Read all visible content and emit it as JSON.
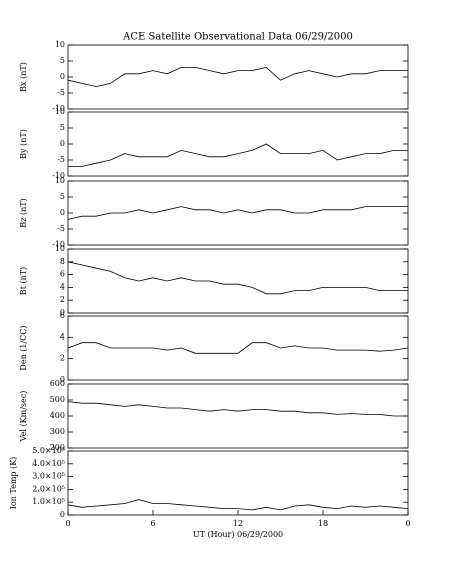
{
  "chart_data": [
    {
      "type": "line",
      "title": "ACE Satellite Observational Data   06/29/2000",
      "ylabel": "Bx (nT)",
      "x": [
        0,
        1,
        2,
        3,
        4,
        5,
        6,
        7,
        8,
        9,
        10,
        11,
        12,
        13,
        14,
        15,
        16,
        17,
        18,
        19,
        20,
        21,
        22,
        23,
        24
      ],
      "series": [
        {
          "name": "Bx",
          "color": "#000000",
          "values": [
            -1,
            -2,
            -3,
            -2,
            1,
            1,
            2,
            1,
            3,
            3,
            2,
            1,
            2,
            2,
            3,
            -1,
            1,
            2,
            1,
            0,
            1,
            1,
            2,
            2,
            2
          ]
        }
      ],
      "xlim": [
        0,
        24
      ],
      "ylim": [
        -10,
        10
      ],
      "yticks": [
        -10,
        -5,
        0,
        5,
        10
      ]
    },
    {
      "type": "line",
      "ylabel": "By (nT)",
      "x": [
        0,
        1,
        2,
        3,
        4,
        5,
        6,
        7,
        8,
        9,
        10,
        11,
        12,
        13,
        14,
        15,
        16,
        17,
        18,
        19,
        20,
        21,
        22,
        23,
        24
      ],
      "series": [
        {
          "name": "By",
          "color": "#000000",
          "values": [
            -7,
            -7,
            -6,
            -5,
            -3,
            -4,
            -4,
            -4,
            -2,
            -3,
            -4,
            -4,
            -3,
            -2,
            0,
            -3,
            -3,
            -3,
            -2,
            -5,
            -4,
            -3,
            -3,
            -2,
            -2
          ]
        }
      ],
      "xlim": [
        0,
        24
      ],
      "ylim": [
        -10,
        10
      ],
      "yticks": [
        -10,
        -5,
        0,
        5,
        10
      ]
    },
    {
      "type": "line",
      "ylabel": "Bz (nT)",
      "x": [
        0,
        1,
        2,
        3,
        4,
        5,
        6,
        7,
        8,
        9,
        10,
        11,
        12,
        13,
        14,
        15,
        16,
        17,
        18,
        19,
        20,
        21,
        22,
        23,
        24
      ],
      "series": [
        {
          "name": "Bz",
          "color": "#000000",
          "values": [
            -2,
            -1,
            -1,
            0,
            0,
            1,
            0,
            1,
            2,
            1,
            1,
            0,
            1,
            0,
            1,
            1,
            0,
            0,
            1,
            1,
            1,
            2,
            2,
            2,
            2
          ]
        }
      ],
      "xlim": [
        0,
        24
      ],
      "ylim": [
        -10,
        10
      ],
      "yticks": [
        -10,
        -5,
        0,
        5,
        10
      ]
    },
    {
      "type": "line",
      "ylabel": "Bt (nT)",
      "x": [
        0,
        1,
        2,
        3,
        4,
        5,
        6,
        7,
        8,
        9,
        10,
        11,
        12,
        13,
        14,
        15,
        16,
        17,
        18,
        19,
        20,
        21,
        22,
        23,
        24
      ],
      "series": [
        {
          "name": "Bt",
          "color": "#000000",
          "values": [
            8,
            7.5,
            7,
            6.5,
            5.5,
            5,
            5.5,
            5,
            5.5,
            5,
            5,
            4.5,
            4.5,
            4,
            3,
            3,
            3.5,
            3.5,
            4,
            4,
            4,
            4,
            3.5,
            3.5,
            3.5
          ]
        }
      ],
      "xlim": [
        0,
        24
      ],
      "ylim": [
        0,
        10
      ],
      "yticks": [
        0,
        2,
        4,
        6,
        8,
        10
      ]
    },
    {
      "type": "line",
      "ylabel": "Den (1/CC)",
      "x": [
        0,
        1,
        2,
        3,
        4,
        5,
        6,
        7,
        8,
        9,
        10,
        11,
        12,
        13,
        14,
        15,
        16,
        17,
        18,
        19,
        20,
        21,
        22,
        23,
        24
      ],
      "series": [
        {
          "name": "Den",
          "color": "#000000",
          "values": [
            3,
            3.5,
            3.5,
            3,
            3,
            3,
            3,
            2.8,
            3,
            2.5,
            2.5,
            2.5,
            2.5,
            3.5,
            3.5,
            3,
            3.2,
            3,
            3,
            2.8,
            2.8,
            2.8,
            2.7,
            2.8,
            3
          ]
        }
      ],
      "xlim": [
        0,
        24
      ],
      "ylim": [
        0,
        6
      ],
      "yticks": [
        0,
        2,
        4,
        6
      ]
    },
    {
      "type": "line",
      "ylabel": "Vel (Km/sec)",
      "x": [
        0,
        1,
        2,
        3,
        4,
        5,
        6,
        7,
        8,
        9,
        10,
        11,
        12,
        13,
        14,
        15,
        16,
        17,
        18,
        19,
        20,
        21,
        22,
        23,
        24
      ],
      "series": [
        {
          "name": "Vel",
          "color": "#000000",
          "values": [
            490,
            480,
            480,
            470,
            460,
            470,
            460,
            450,
            450,
            440,
            430,
            440,
            430,
            440,
            440,
            430,
            430,
            420,
            420,
            410,
            415,
            410,
            410,
            400,
            400
          ]
        }
      ],
      "xlim": [
        0,
        24
      ],
      "ylim": [
        200,
        600
      ],
      "yticks": [
        200,
        300,
        400,
        500,
        600
      ]
    },
    {
      "type": "line",
      "ylabel": "Ion Temp (K)",
      "xlabel": "UT (Hour)  06/29/2000",
      "x": [
        0,
        1,
        2,
        3,
        4,
        5,
        6,
        7,
        8,
        9,
        10,
        11,
        12,
        13,
        14,
        15,
        16,
        17,
        18,
        19,
        20,
        21,
        22,
        23,
        24
      ],
      "series": [
        {
          "name": "Ion Temp",
          "color": "#000000",
          "values": [
            80000,
            60000,
            70000,
            80000,
            90000,
            120000,
            90000,
            90000,
            80000,
            70000,
            60000,
            50000,
            50000,
            40000,
            60000,
            40000,
            70000,
            80000,
            60000,
            50000,
            70000,
            60000,
            70000,
            60000,
            50000
          ]
        }
      ],
      "xlim": [
        0,
        24
      ],
      "xticks": [
        0,
        6,
        12,
        18,
        {
          "value": 24,
          "label": "0"
        }
      ],
      "ylim": [
        0,
        500000
      ],
      "yticks": [
        0,
        {
          "value": 100000,
          "label": "1.0×10⁵"
        },
        {
          "value": 200000,
          "label": "2.0×10⁵"
        },
        {
          "value": 300000,
          "label": "3.0×10⁵"
        },
        {
          "value": 400000,
          "label": "4.0×10⁵"
        },
        {
          "value": 500000,
          "label": "5.0×10⁵"
        }
      ]
    }
  ]
}
